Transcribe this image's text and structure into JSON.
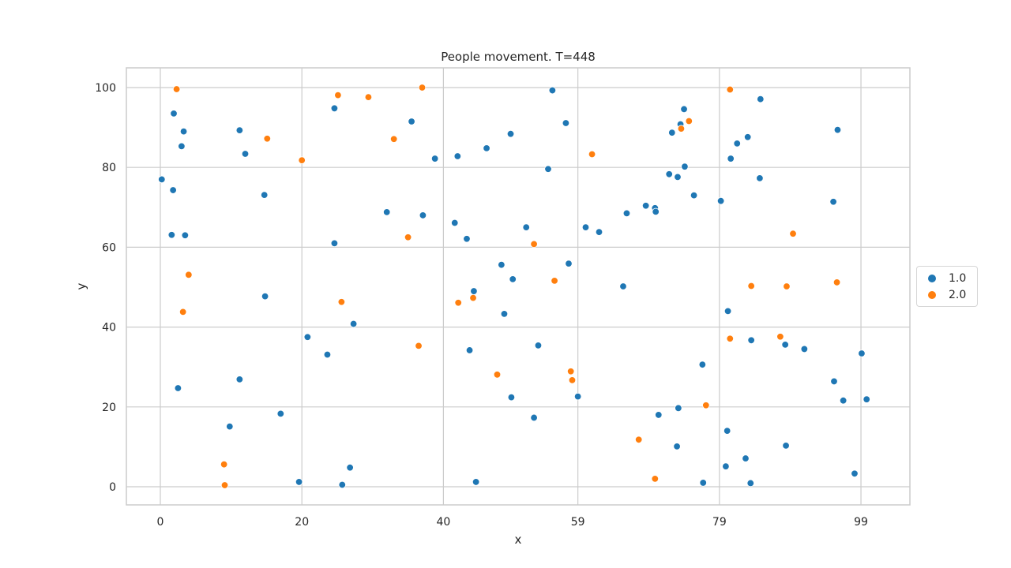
{
  "chart_data": {
    "type": "scatter",
    "title": "People movement. T=448",
    "xlabel": "x",
    "ylabel": "y",
    "xlim": [
      -5,
      105
    ],
    "ylim": [
      -4.5,
      105
    ],
    "xticks": [
      0,
      20,
      40,
      59,
      79,
      99
    ],
    "yticks": [
      0,
      20,
      40,
      60,
      80,
      100
    ],
    "grid": true,
    "legend_position": "right",
    "series": [
      {
        "name": "1.0",
        "color": "#1f77b4",
        "points": [
          [
            0.2,
            77
          ],
          [
            1.8,
            74.3
          ],
          [
            1.6,
            63.1
          ],
          [
            3.5,
            63
          ],
          [
            1.9,
            93.5
          ],
          [
            3.3,
            89
          ],
          [
            3,
            85.3
          ],
          [
            2.5,
            24.7
          ],
          [
            11.2,
            89.3
          ],
          [
            12,
            83.4
          ],
          [
            14.7,
            73.1
          ],
          [
            14.8,
            47.7
          ],
          [
            11.2,
            26.9
          ],
          [
            9.8,
            15.1
          ],
          [
            17,
            18.3
          ],
          [
            19.6,
            1.2
          ],
          [
            20.8,
            37.5
          ],
          [
            23.6,
            33.1
          ],
          [
            24.6,
            94.8
          ],
          [
            24.6,
            61
          ],
          [
            25.7,
            0.5
          ],
          [
            26.8,
            4.8
          ],
          [
            27.3,
            40.8
          ],
          [
            32,
            68.8
          ],
          [
            35.5,
            91.5
          ],
          [
            37.1,
            68
          ],
          [
            38.8,
            82.2
          ],
          [
            41.6,
            66.1
          ],
          [
            42,
            82.8
          ],
          [
            43.3,
            62.1
          ],
          [
            43.7,
            34.2
          ],
          [
            44.3,
            49
          ],
          [
            44.6,
            1.2
          ],
          [
            46.1,
            84.8
          ],
          [
            48.2,
            55.6
          ],
          [
            48.6,
            43.3
          ],
          [
            49.5,
            88.4
          ],
          [
            49.8,
            52
          ],
          [
            49.6,
            22.4
          ],
          [
            51.7,
            65
          ],
          [
            52.8,
            17.3
          ],
          [
            53.4,
            35.4
          ],
          [
            54.8,
            79.6
          ],
          [
            55.4,
            99.3
          ],
          [
            57.3,
            91.1
          ],
          [
            57.7,
            55.9
          ],
          [
            59,
            22.6
          ],
          [
            60.1,
            65
          ],
          [
            62,
            63.8
          ],
          [
            65.4,
            50.2
          ],
          [
            65.9,
            68.5
          ],
          [
            68.6,
            70.4
          ],
          [
            69.9,
            69.8
          ],
          [
            70,
            68.9
          ],
          [
            70.4,
            18
          ],
          [
            71.9,
            78.3
          ],
          [
            72.3,
            88.7
          ],
          [
            73,
            10.1
          ],
          [
            73.1,
            77.6
          ],
          [
            73.2,
            19.7
          ],
          [
            73.5,
            90.8
          ],
          [
            74.1,
            80.2
          ],
          [
            74,
            94.6
          ],
          [
            75.4,
            73
          ],
          [
            76.6,
            30.6
          ],
          [
            76.7,
            1
          ],
          [
            79.2,
            71.6
          ],
          [
            80.2,
            44
          ],
          [
            79.9,
            5.1
          ],
          [
            80.1,
            14
          ],
          [
            80.6,
            82.2
          ],
          [
            81.5,
            86
          ],
          [
            83,
            87.6
          ],
          [
            82.7,
            7.1
          ],
          [
            83.4,
            0.9
          ],
          [
            83.5,
            36.7
          ],
          [
            84.7,
            77.3
          ],
          [
            84.8,
            97.1
          ],
          [
            88.3,
            35.6
          ],
          [
            88.4,
            10.3
          ],
          [
            91,
            34.5
          ],
          [
            95.1,
            71.4
          ],
          [
            95.2,
            26.4
          ],
          [
            95.7,
            89.4
          ],
          [
            96.5,
            21.6
          ],
          [
            99.1,
            33.4
          ],
          [
            99.8,
            21.9
          ],
          [
            98.1,
            3.3
          ]
        ]
      },
      {
        "name": "2.0",
        "color": "#ff7f0e",
        "points": [
          [
            2.3,
            99.6
          ],
          [
            3.2,
            43.8
          ],
          [
            4,
            53.1
          ],
          [
            9,
            5.6
          ],
          [
            9.1,
            0.4
          ],
          [
            15.1,
            87.2
          ],
          [
            20,
            81.8
          ],
          [
            25.1,
            98.1
          ],
          [
            25.6,
            46.3
          ],
          [
            29.4,
            97.6
          ],
          [
            33,
            87.1
          ],
          [
            35,
            62.5
          ],
          [
            36.5,
            35.3
          ],
          [
            37,
            100
          ],
          [
            42.1,
            46.1
          ],
          [
            44.2,
            47.3
          ],
          [
            47.6,
            28.1
          ],
          [
            52.8,
            60.8
          ],
          [
            55.7,
            51.6
          ],
          [
            58,
            28.9
          ],
          [
            58.2,
            26.7
          ],
          [
            61,
            83.3
          ],
          [
            67.6,
            11.8
          ],
          [
            69.9,
            2
          ],
          [
            73.6,
            89.7
          ],
          [
            74.7,
            91.6
          ],
          [
            77.1,
            20.4
          ],
          [
            80.5,
            99.5
          ],
          [
            80.5,
            37.1
          ],
          [
            83.5,
            50.3
          ],
          [
            87.6,
            37.6
          ],
          [
            88.5,
            50.2
          ],
          [
            89.4,
            63.4
          ],
          [
            95.6,
            51.2
          ]
        ]
      }
    ]
  }
}
